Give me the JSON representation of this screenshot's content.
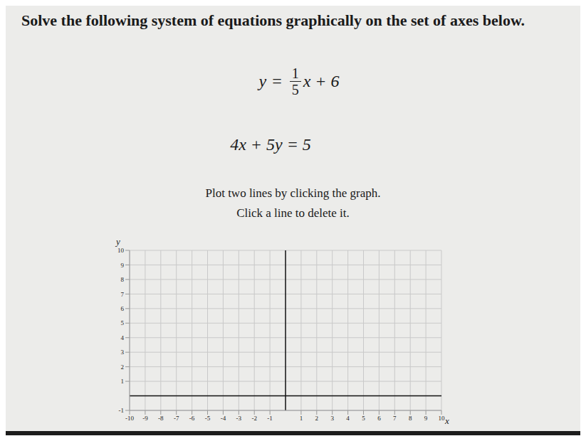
{
  "title": "Solve the following system of equations graphically on the set of axes below.",
  "equations": [
    {
      "lhs": "y",
      "numerator": "1",
      "denominator": "5",
      "rhs": "x + 6"
    },
    {
      "text": "4x + 5y = 5"
    }
  ],
  "instructions": [
    "Plot two lines by clicking the graph.",
    "Click a line to delete it."
  ],
  "chart_data": {
    "type": "scatter",
    "xlabel": "x",
    "ylabel": "y",
    "xlim": [
      -10,
      10
    ],
    "ylim": [
      -1,
      10
    ],
    "xticks": [
      -10,
      -9,
      -8,
      -7,
      -6,
      -5,
      -4,
      -3,
      -2,
      -1,
      1,
      2,
      3,
      4,
      5,
      6,
      7,
      8,
      9,
      10
    ],
    "yticks": [
      -1,
      1,
      2,
      3,
      4,
      5,
      6,
      7,
      8,
      9,
      10
    ],
    "grid": true
  }
}
